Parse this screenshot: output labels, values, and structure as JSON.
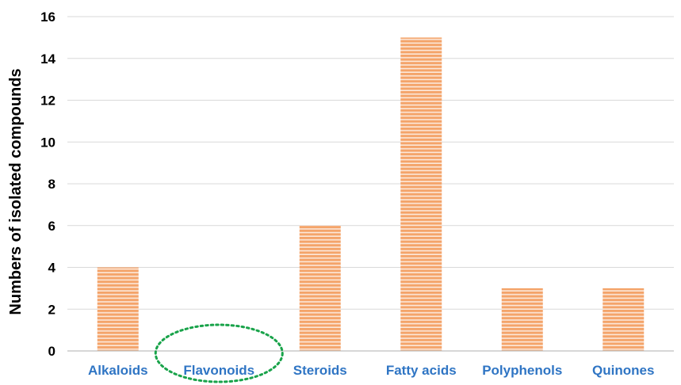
{
  "chart_data": {
    "type": "bar",
    "categories": [
      "Alkaloids",
      "Flavonoids",
      "Steroids",
      "Fatty acids",
      "Polyphenols",
      "Quinones"
    ],
    "values": [
      4,
      0,
      6,
      15,
      3,
      3
    ],
    "xlabel": "",
    "ylabel": "Numbers of isolated compounds",
    "ylim": [
      0,
      16
    ],
    "yticks": [
      0,
      2,
      4,
      6,
      8,
      10,
      12,
      14,
      16
    ],
    "grid": true,
    "legend": "none",
    "highlighted_category": "Flavonoids",
    "colors": {
      "bar": "#f4a46a",
      "bar_stripe": "#ffffff",
      "category_label": "#2f75c4",
      "highlight_ellipse": "#19a34a",
      "gridline": "#d9d9d9"
    }
  }
}
